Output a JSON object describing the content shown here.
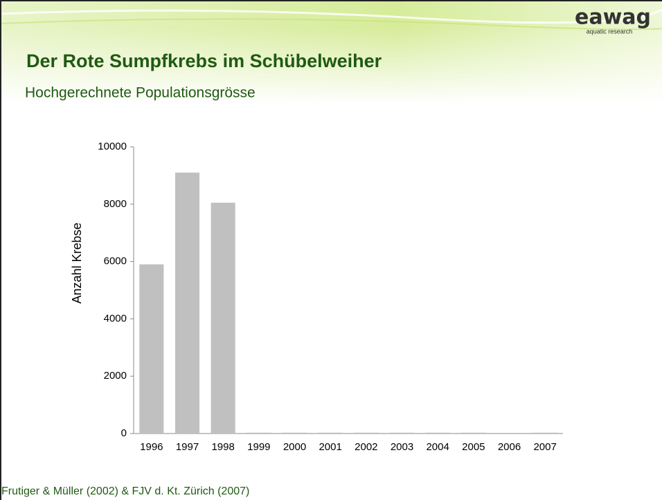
{
  "logo": {
    "name": "eawag",
    "tagline": "aquatic research"
  },
  "chart_data": {
    "type": "bar",
    "title": "Der Rote Sumpfkrebs im Schübelweiher",
    "subtitle": "Hochgerechnete Populationsgrösse",
    "source": "Frutiger & Müller (2002)  &  FJV d. Kt. Zürich  (2007)",
    "y_label": "Anzahl Krebse",
    "categories": [
      "1996",
      "1997",
      "1998",
      "1999",
      "2000",
      "2001",
      "2002",
      "2003",
      "2004",
      "2005",
      "2006",
      "2007"
    ],
    "values": [
      5900,
      9100,
      8050,
      30,
      30,
      30,
      30,
      30,
      30,
      30,
      0,
      30
    ],
    "color": "#c0c0c0",
    "ylim": [
      0,
      10000
    ],
    "yticks": [
      0,
      2000,
      4000,
      6000,
      8000,
      10000
    ],
    "grid": false
  }
}
